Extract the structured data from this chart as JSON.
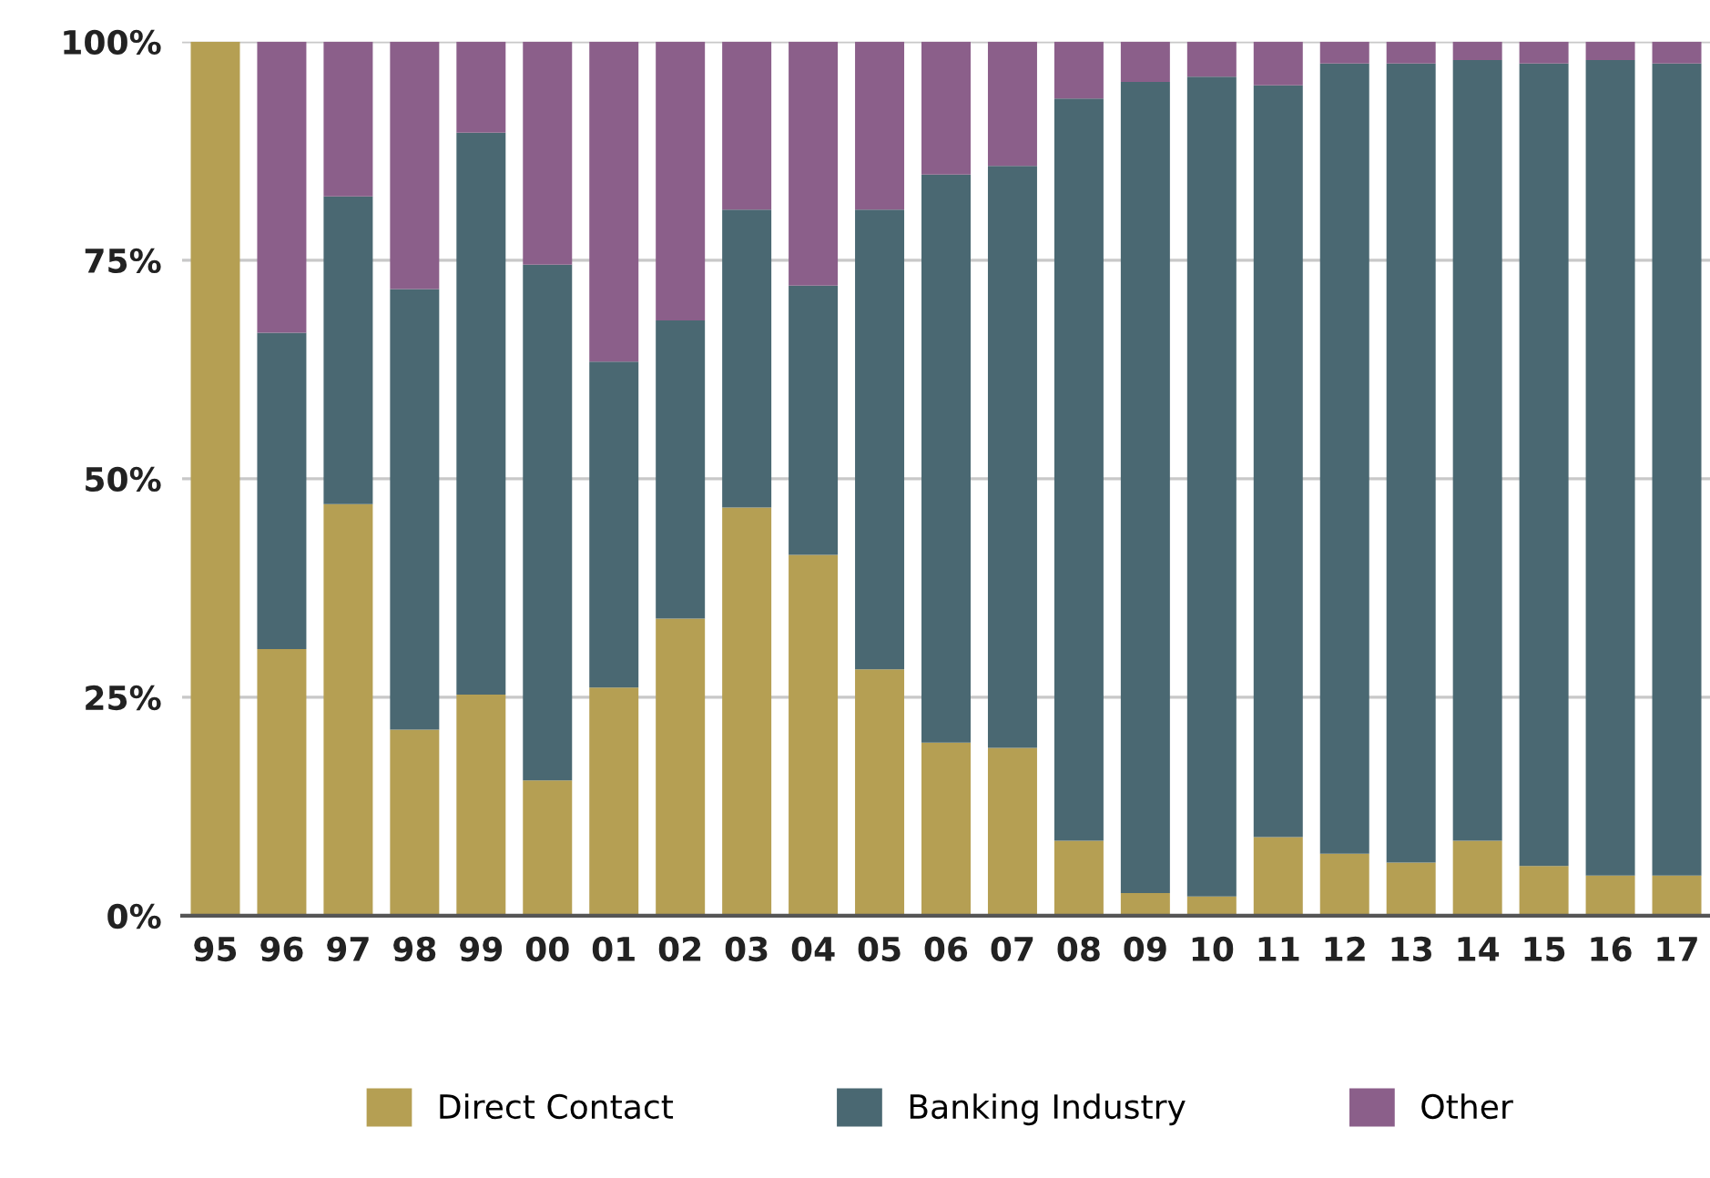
{
  "chart_data": {
    "type": "bar",
    "stacked": true,
    "categories": [
      "95",
      "96",
      "97",
      "98",
      "99",
      "00",
      "01",
      "02",
      "03",
      "04",
      "05",
      "06",
      "07",
      "08",
      "09",
      "10",
      "11",
      "12",
      "13",
      "14",
      "15",
      "16",
      "17"
    ],
    "series": [
      {
        "name": "Direct Contact",
        "color": "#b59f53",
        "values": [
          100,
          30.5,
          47.1,
          21.3,
          25.3,
          15.5,
          26.1,
          34.0,
          46.7,
          41.3,
          28.2,
          19.8,
          19.2,
          8.6,
          2.6,
          2.2,
          9.0,
          7.1,
          6.1,
          8.6,
          5.7,
          4.6,
          4.6
        ]
      },
      {
        "name": "Banking Industry",
        "color": "#4a6872",
        "values": [
          0,
          36.2,
          35.2,
          50.4,
          64.3,
          59.0,
          37.3,
          34.1,
          34.1,
          30.8,
          52.6,
          65.0,
          66.6,
          84.9,
          92.8,
          93.8,
          86.0,
          90.4,
          91.4,
          89.3,
          91.8,
          93.3,
          92.9
        ]
      },
      {
        "name": "Other",
        "color": "#8b5f8a",
        "values": [
          0,
          33.3,
          17.7,
          28.3,
          10.4,
          25.5,
          36.6,
          31.9,
          19.2,
          27.9,
          19.2,
          15.2,
          14.2,
          6.5,
          4.6,
          4.0,
          5.0,
          2.5,
          2.5,
          2.1,
          2.5,
          2.1,
          2.5
        ]
      }
    ],
    "ylim": [
      0,
      100
    ],
    "yticks": [
      {
        "value": 0,
        "label": "0%"
      },
      {
        "value": 25,
        "label": "25%"
      },
      {
        "value": 50,
        "label": "50%"
      },
      {
        "value": 75,
        "label": "75%"
      },
      {
        "value": 100,
        "label": "100%"
      }
    ],
    "grid": "y",
    "legend": "bottom"
  }
}
